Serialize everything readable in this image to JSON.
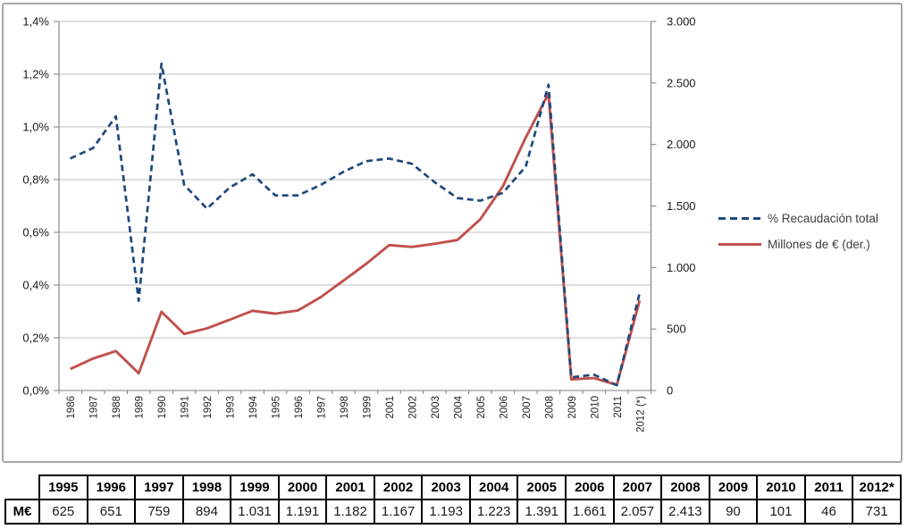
{
  "chart_data": {
    "type": "line",
    "categories": [
      "1986",
      "1987",
      "1988",
      "1989",
      "1990",
      "1991",
      "1992",
      "1993",
      "1994",
      "1995",
      "1996",
      "1997",
      "1998",
      "1999",
      "2001",
      "2002",
      "2003",
      "2004",
      "2005",
      "2006",
      "2007",
      "2008",
      "2009",
      "2010",
      "2011",
      "2012 (*)"
    ],
    "series": [
      {
        "name": "% Recaudación total",
        "axis": "left",
        "style": "dashed",
        "color": "#1F497D",
        "values": [
          0.88,
          0.92,
          1.04,
          0.34,
          1.24,
          0.78,
          0.69,
          0.77,
          0.82,
          0.74,
          0.74,
          0.78,
          0.83,
          0.87,
          0.88,
          0.86,
          0.79,
          0.73,
          0.72,
          0.75,
          0.85,
          1.16,
          0.05,
          0.06,
          0.02,
          0.37
        ]
      },
      {
        "name": "Millones de € (der.)",
        "axis": "right",
        "style": "solid",
        "color": "#C0504D",
        "values": [
          175,
          260,
          320,
          140,
          640,
          460,
          505,
          575,
          648,
          625,
          651,
          759,
          894,
          1031,
          1182,
          1167,
          1193,
          1223,
          1391,
          1661,
          2057,
          2413,
          90,
          101,
          46,
          731
        ]
      }
    ],
    "left_ylim": [
      0,
      1.4
    ],
    "right_ylim": [
      0,
      3000
    ],
    "left_tick_labels": [
      "1,4%",
      "1,2%",
      "1,0%",
      "0,8%",
      "0,6%",
      "0,4%",
      "0,2%",
      "0,0%"
    ],
    "right_tick_labels": [
      "3.000",
      "2.500",
      "2.000",
      "1.500",
      "1.000",
      "500",
      "0"
    ],
    "title": "",
    "xlabel": "",
    "ylabel_left": "% Recaudación total",
    "ylabel_right": "Millones de €",
    "grid": true,
    "legend_position": "right"
  },
  "table": {
    "row_header": "M€",
    "years": [
      "1995",
      "1996",
      "1997",
      "1998",
      "1999",
      "2000",
      "2001",
      "2002",
      "2003",
      "2004",
      "2005",
      "2006",
      "2007",
      "2008",
      "2009",
      "2010",
      "2011",
      "2012*"
    ],
    "values": [
      "625",
      "651",
      "759",
      "894",
      "1.031",
      "1.191",
      "1.182",
      "1.167",
      "1.193",
      "1.223",
      "1.391",
      "1.661",
      "2.057",
      "2.413",
      "90",
      "101",
      "46",
      "731"
    ]
  },
  "colors": {
    "series_blue": "#1F497D",
    "series_red": "#C0504D",
    "grid_line": "#bfbfbf",
    "axis_line": "#7f7f7f",
    "frame_border": "#a8a8a8",
    "table_border": "#000000"
  }
}
